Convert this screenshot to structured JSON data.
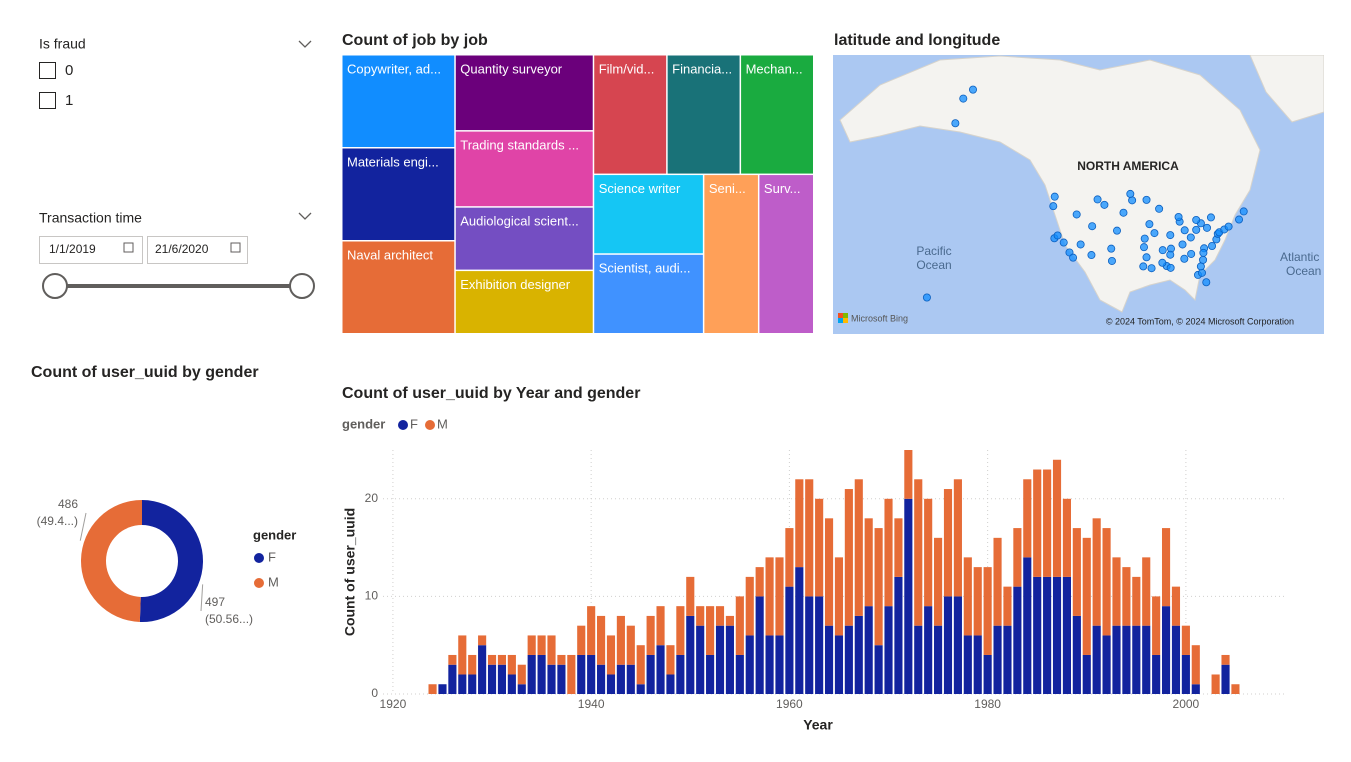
{
  "slicers": [
    {
      "title": "Is fraud",
      "options": [
        "0",
        "1"
      ]
    },
    {
      "title": "Transaction time",
      "start": "1/1/2019",
      "end": "21/6/2020"
    }
  ],
  "chart_data": [
    {
      "type": "treemap",
      "title": "Count of job by job",
      "labels": [
        "Copywriter, ad...",
        "Materials engi...",
        "Naval architect",
        "Quantity surveyor",
        "Trading standards ...",
        "Audiological scient...",
        "Exhibition designer",
        "Film/vid...",
        "Financia...",
        "Mechan...",
        "Science writer",
        "Scientist, audi...",
        "Seni...",
        "Surv..."
      ],
      "values": [
        6,
        6,
        6,
        6,
        6,
        5,
        5,
        5,
        5,
        5,
        5,
        5,
        5,
        5
      ],
      "colors": [
        "#118DFF",
        "#12239E",
        "#E66C37",
        "#6B007B",
        "#E044A7",
        "#744EC2",
        "#D9B300",
        "#D64550",
        "#197278",
        "#1AAB40",
        "#15C6F4",
        "#4092FF",
        "#FFA058",
        "#BE5DC9"
      ]
    },
    {
      "type": "map",
      "title": "latitude and longitude",
      "labels": [
        "NORTH AMERICA",
        "Pacific",
        "Ocean",
        "Atlantic",
        "Ocean"
      ],
      "logo": "Microsoft Bing",
      "attribution": "© 2024 TomTom, © 2024 Microsoft Corporation",
      "color": "#118DFF",
      "lat": [
        64.8,
        61.2,
        66.0,
        21.3,
        47.6,
        45.5,
        37.8,
        34.1,
        32.7,
        36.2,
        33.4,
        39.7,
        40.8,
        43.6,
        46.9,
        35.1,
        31.8,
        29.8,
        32.8,
        30.3,
        35.5,
        39.1,
        41.3,
        44.9,
        41.9,
        43.0,
        39.8,
        38.6,
        36.2,
        35.1,
        33.7,
        32.4,
        30.4,
        29.9,
        27.9,
        25.8,
        28.5,
        30.3,
        32.1,
        35.2,
        35.8,
        37.5,
        38.9,
        39.3,
        40.0,
        40.7,
        42.4,
        42.9,
        44.3,
        41.5,
        40.4,
        42.3,
        39.9,
        38.0,
        37.7,
        34.7,
        33.5,
        31.3,
        44.0,
        46.8,
        48.2,
        47.0,
        45.8,
        34.0,
        36.7,
        38.5
      ],
      "lon": [
        -147.7,
        -149.9,
        -145.0,
        -157.8,
        -122.3,
        -122.7,
        -122.4,
        -118.2,
        -117.2,
        -115.1,
        -112.1,
        -105.0,
        -111.9,
        -116.2,
        -96.8,
        -106.6,
        -106.4,
        -95.4,
        -96.8,
        -97.7,
        -97.5,
        -94.6,
        -96.0,
        -93.3,
        -87.6,
        -87.9,
        -86.2,
        -90.2,
        -86.8,
        -90.0,
        -84.4,
        -86.3,
        -91.2,
        -90.1,
        -82.5,
        -80.2,
        -81.4,
        -81.7,
        -81.1,
        -80.8,
        -78.6,
        -77.4,
        -77.0,
        -76.6,
        -75.2,
        -74.0,
        -71.1,
        -78.9,
        -69.8,
        -81.7,
        -80.0,
        -83.0,
        -83.0,
        -84.5,
        -97.3,
        -92.3,
        -90.2,
        -92.4,
        -103.2,
        -100.8,
        -101.3,
        -110.4,
        -108.5,
        -81.0,
        -119.8,
        -121.5
      ]
    },
    {
      "type": "pie",
      "donut": true,
      "title": "Count of user_uuid by gender",
      "legend_title": "gender",
      "categories": [
        "F",
        "M"
      ],
      "values": [
        497,
        486
      ],
      "percent_labels": [
        "(50.56...)",
        "(49.4...)"
      ],
      "colors": [
        "#12239E",
        "#E66C37"
      ]
    },
    {
      "type": "bar",
      "stacked": true,
      "title": "Count of user_uuid by Year and gender",
      "legend_title": "gender",
      "xlabel": "Year",
      "ylabel": "Count of user_uuid",
      "x": [
        1924,
        1925,
        1926,
        1927,
        1928,
        1929,
        1930,
        1931,
        1932,
        1933,
        1934,
        1935,
        1936,
        1937,
        1938,
        1939,
        1940,
        1941,
        1942,
        1943,
        1944,
        1945,
        1946,
        1947,
        1948,
        1949,
        1950,
        1951,
        1952,
        1953,
        1954,
        1955,
        1956,
        1957,
        1958,
        1959,
        1960,
        1961,
        1962,
        1963,
        1964,
        1965,
        1966,
        1967,
        1968,
        1969,
        1970,
        1971,
        1972,
        1973,
        1974,
        1975,
        1976,
        1977,
        1978,
        1979,
        1980,
        1981,
        1982,
        1983,
        1984,
        1985,
        1986,
        1987,
        1988,
        1989,
        1990,
        1991,
        1992,
        1993,
        1994,
        1995,
        1996,
        1997,
        1998,
        1999,
        2000,
        2001,
        2003,
        2004,
        2005
      ],
      "series": [
        {
          "name": "F",
          "color": "#12239E",
          "values": [
            0,
            1,
            3,
            2,
            2,
            5,
            3,
            3,
            2,
            1,
            4,
            4,
            3,
            3,
            0,
            4,
            4,
            3,
            2,
            3,
            3,
            1,
            4,
            5,
            2,
            4,
            8,
            7,
            4,
            7,
            7,
            4,
            6,
            10,
            6,
            6,
            11,
            13,
            10,
            10,
            7,
            6,
            7,
            8,
            9,
            5,
            9,
            12,
            20,
            7,
            9,
            7,
            10,
            10,
            6,
            6,
            4,
            7,
            7,
            11,
            14,
            12,
            12,
            12,
            12,
            8,
            4,
            7,
            6,
            7,
            7,
            7,
            7,
            4,
            9,
            7,
            4,
            1,
            0,
            3,
            0
          ]
        },
        {
          "name": "M",
          "color": "#E66C37",
          "values": [
            1,
            0,
            1,
            4,
            2,
            1,
            1,
            1,
            2,
            2,
            2,
            2,
            3,
            1,
            4,
            3,
            5,
            5,
            4,
            5,
            4,
            4,
            4,
            4,
            3,
            5,
            4,
            2,
            5,
            2,
            1,
            6,
            6,
            3,
            8,
            8,
            6,
            9,
            12,
            10,
            11,
            8,
            14,
            14,
            9,
            12,
            11,
            6,
            5,
            15,
            11,
            9,
            11,
            12,
            8,
            7,
            9,
            9,
            4,
            6,
            8,
            11,
            11,
            12,
            8,
            9,
            12,
            11,
            11,
            7,
            6,
            5,
            7,
            6,
            8,
            4,
            3,
            4,
            2,
            1,
            1
          ]
        }
      ],
      "xlim": [
        1919,
        2010
      ],
      "xticks": [
        1920,
        1940,
        1960,
        1980,
        2000
      ],
      "ylim": [
        0,
        25
      ],
      "yticks": [
        0,
        10,
        20
      ],
      "grid": true
    }
  ]
}
